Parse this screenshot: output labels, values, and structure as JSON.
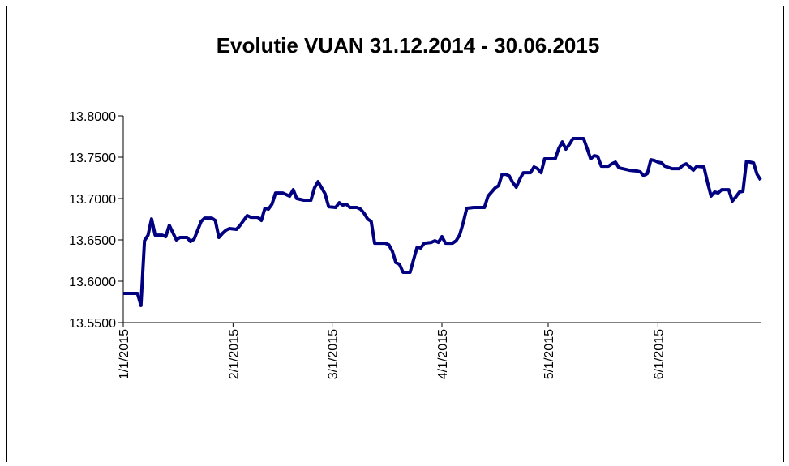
{
  "chart_data": {
    "type": "line",
    "title": "Evolutie VUAN 31.12.2014 - 30.06.2015",
    "x": [
      "1/1/2015",
      "1/5/2015",
      "1/6/2015",
      "1/7/2015",
      "1/8/2015",
      "1/9/2015",
      "1/10/2015",
      "1/12/2015",
      "1/13/2015",
      "1/14/2015",
      "1/15/2015",
      "1/16/2015",
      "1/17/2015",
      "1/19/2015",
      "1/20/2015",
      "1/21/2015",
      "1/23/2015",
      "1/24/2015",
      "1/26/2015",
      "1/27/2015",
      "1/28/2015",
      "1/29/2015",
      "1/30/2015",
      "1/31/2015",
      "2/2/2015",
      "2/3/2015",
      "2/5/2015",
      "2/6/2015",
      "2/8/2015",
      "2/9/2015",
      "2/10/2015",
      "2/11/2015",
      "2/12/2015",
      "2/13/2015",
      "2/15/2015",
      "2/17/2015",
      "2/18/2015",
      "2/19/2015",
      "2/21/2015",
      "2/23/2015",
      "2/24/2015",
      "2/25/2015",
      "2/27/2015",
      "2/28/2015",
      "3/2/2015",
      "3/3/2015",
      "3/4/2015",
      "3/5/2015",
      "3/6/2015",
      "3/8/2015",
      "3/9/2015",
      "3/10/2015",
      "3/11/2015",
      "3/12/2015",
      "3/13/2015",
      "3/16/2015",
      "3/17/2015",
      "3/18/2015",
      "3/19/2015",
      "3/20/2015",
      "3/21/2015",
      "3/23/2015",
      "3/24/2015",
      "3/25/2015",
      "3/26/2015",
      "3/27/2015",
      "3/29/2015",
      "3/30/2015",
      "3/31/2015",
      "4/1/2015",
      "4/2/2015",
      "4/4/2015",
      "4/5/2015",
      "4/6/2015",
      "4/7/2015",
      "4/8/2015",
      "4/10/2015",
      "4/13/2015",
      "4/14/2015",
      "4/16/2015",
      "4/17/2015",
      "4/18/2015",
      "4/19/2015",
      "4/20/2015",
      "4/21/2015",
      "4/22/2015",
      "4/23/2015",
      "4/24/2015",
      "4/26/2015",
      "4/27/2015",
      "4/28/2015",
      "4/29/2015",
      "4/30/2015",
      "5/3/2015",
      "5/4/2015",
      "5/5/2015",
      "5/6/2015",
      "5/7/2015",
      "5/8/2015",
      "5/11/2015",
      "5/12/2015",
      "5/13/2015",
      "5/14/2015",
      "5/15/2015",
      "5/16/2015",
      "5/18/2015",
      "5/19/2015",
      "5/20/2015",
      "5/21/2015",
      "5/22/2015",
      "5/24/2015",
      "5/26/2015",
      "5/27/2015",
      "5/28/2015",
      "5/29/2015",
      "5/30/2015",
      "5/31/2015",
      "6/1/2015",
      "6/2/2015",
      "6/3/2015",
      "6/5/2015",
      "6/7/2015",
      "6/8/2015",
      "6/9/2015",
      "6/10/2015",
      "6/11/2015",
      "6/12/2015",
      "6/14/2015",
      "6/15/2015",
      "6/16/2015",
      "6/17/2015",
      "6/18/2015",
      "6/19/2015",
      "6/21/2015",
      "6/22/2015",
      "6/23/2015",
      "6/24/2015",
      "6/25/2015",
      "6/26/2015",
      "6/28/2015",
      "6/29/2015",
      "6/30/2015"
    ],
    "values": [
      13.5853,
      13.5853,
      13.5706,
      13.649,
      13.6558,
      13.6754,
      13.6558,
      13.6558,
      13.6539,
      13.6676,
      13.6588,
      13.65,
      13.6529,
      13.6529,
      13.648,
      13.6509,
      13.6725,
      13.6764,
      13.6764,
      13.6735,
      13.6529,
      13.6578,
      13.6617,
      13.6637,
      13.6627,
      13.6676,
      13.6794,
      13.6774,
      13.6774,
      13.6735,
      13.6882,
      13.6872,
      13.6931,
      13.7068,
      13.7068,
      13.7029,
      13.7107,
      13.6999,
      13.698,
      13.698,
      13.7127,
      13.7205,
      13.7058,
      13.6901,
      13.6892,
      13.695,
      13.6921,
      13.6931,
      13.6892,
      13.6892,
      13.6872,
      13.6823,
      13.6754,
      13.6725,
      13.646,
      13.646,
      13.6441,
      13.6362,
      13.6225,
      13.6206,
      13.6108,
      13.6108,
      13.6264,
      13.6411,
      13.6402,
      13.646,
      13.647,
      13.649,
      13.647,
      13.6539,
      13.646,
      13.646,
      13.649,
      13.6558,
      13.6705,
      13.6882,
      13.6892,
      13.6892,
      13.7029,
      13.7127,
      13.7156,
      13.7293,
      13.7293,
      13.7274,
      13.7195,
      13.7137,
      13.7235,
      13.7313,
      13.7313,
      13.7382,
      13.7362,
      13.7313,
      13.748,
      13.748,
      13.7607,
      13.7685,
      13.7597,
      13.7656,
      13.7725,
      13.7725,
      13.7607,
      13.748,
      13.7519,
      13.7509,
      13.7391,
      13.7391,
      13.7421,
      13.744,
      13.7372,
      13.7362,
      13.7342,
      13.7333,
      13.7323,
      13.7274,
      13.7303,
      13.747,
      13.746,
      13.744,
      13.7431,
      13.7391,
      13.7362,
      13.7362,
      13.7401,
      13.7421,
      13.7382,
      13.7342,
      13.7391,
      13.7382,
      13.7195,
      13.7029,
      13.7078,
      13.7068,
      13.7107,
      13.7107,
      13.697,
      13.7019,
      13.7078,
      13.7088,
      13.745,
      13.7431,
      13.7293,
      13.7225
    ],
    "color": "#000080",
    "xlim": [
      "1/1/2015",
      "6/30/2015"
    ],
    "xticks": [
      "1/1/2015",
      "2/1/2015",
      "3/1/2015",
      "4/1/2015",
      "5/1/2015",
      "6/1/2015"
    ],
    "ylim": [
      13.55,
      13.8
    ],
    "yticks": [
      {
        "value": 13.55,
        "label": "13.5500"
      },
      {
        "value": 13.6,
        "label": "13.6000"
      },
      {
        "value": 13.65,
        "label": "13.6500"
      },
      {
        "value": 13.7,
        "label": "13.7000"
      },
      {
        "value": 13.75,
        "label": "13.7500"
      },
      {
        "value": 13.8,
        "label": "13.8000"
      }
    ],
    "grid": false
  }
}
